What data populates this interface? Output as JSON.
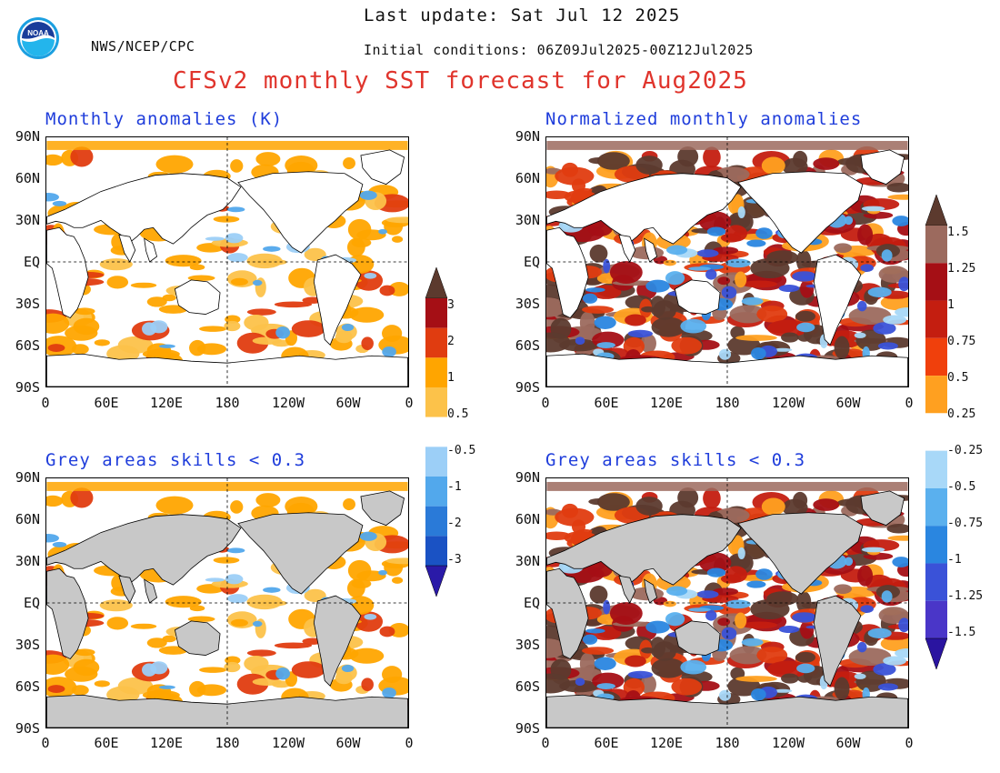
{
  "header": {
    "agency": "NWS/NCEP/CPC",
    "last_update": "Last update: Sat Jul 12 2025",
    "initial_conditions": "Initial conditions: 06Z09Jul2025-00Z12Jul2025",
    "main_title": "CFSv2 monthly SST forecast for Aug2025",
    "logo_text": "NOAA"
  },
  "colors": {
    "title_red": "#e0342c",
    "panel_title_blue": "#1f3ddb",
    "land_grey": "#c8c8c8"
  },
  "panels": {
    "top_left_title": "Monthly anomalies (K)",
    "top_right_title": "Normalized monthly anomalies",
    "bottom_left_title": "Grey areas skills < 0.3",
    "bottom_right_title": "Grey areas skills < 0.3"
  },
  "axes": {
    "lat_labels": [
      "90N",
      "60N",
      "30N",
      "EQ",
      "30S",
      "60S",
      "90S"
    ],
    "lon_labels": [
      "0",
      "60E",
      "120E",
      "180",
      "120W",
      "60W",
      "0"
    ]
  },
  "colorbar_left": {
    "labels": [
      "3",
      "2",
      "1",
      "0.5",
      "-0.5",
      "-1",
      "-2",
      "-3"
    ],
    "colors": [
      "#5c3a2e",
      "#a50f15",
      "#e03c10",
      "#ffa500",
      "#fcc24a",
      "#ffffff",
      "#9ccff7",
      "#52a8ec",
      "#2a7ad8",
      "#1a52c4",
      "#2a1aa8"
    ]
  },
  "colorbar_right": {
    "labels": [
      "1.5",
      "1.25",
      "1",
      "0.75",
      "0.5",
      "0.25",
      "-0.25",
      "-0.5",
      "-0.75",
      "-1",
      "-1.25",
      "-1.5"
    ],
    "colors": [
      "#5c3a2e",
      "#9c6a5e",
      "#a50f15",
      "#c41e10",
      "#f0400c",
      "#ffa020",
      "#ffffff",
      "#a8d8f8",
      "#5ab0ee",
      "#2a86e0",
      "#3a52d8",
      "#4a36c8",
      "#2a14a0"
    ]
  },
  "chart_data": {
    "type": "heatmap",
    "title": "CFSv2 monthly SST forecast for Aug2025",
    "variable": "SST anomaly",
    "panels": [
      "Monthly anomalies (K)",
      "Normalized monthly anomalies",
      "Grey areas skills < 0.3",
      "Grey areas skills < 0.3"
    ],
    "left_scale_levels": [
      -3,
      -2,
      -1,
      -0.5,
      0.5,
      1,
      2,
      3
    ],
    "right_scale_levels": [
      -1.5,
      -1.25,
      -1,
      -0.75,
      -0.5,
      -0.25,
      0.25,
      0.5,
      0.75,
      1,
      1.25,
      1.5
    ]
  }
}
